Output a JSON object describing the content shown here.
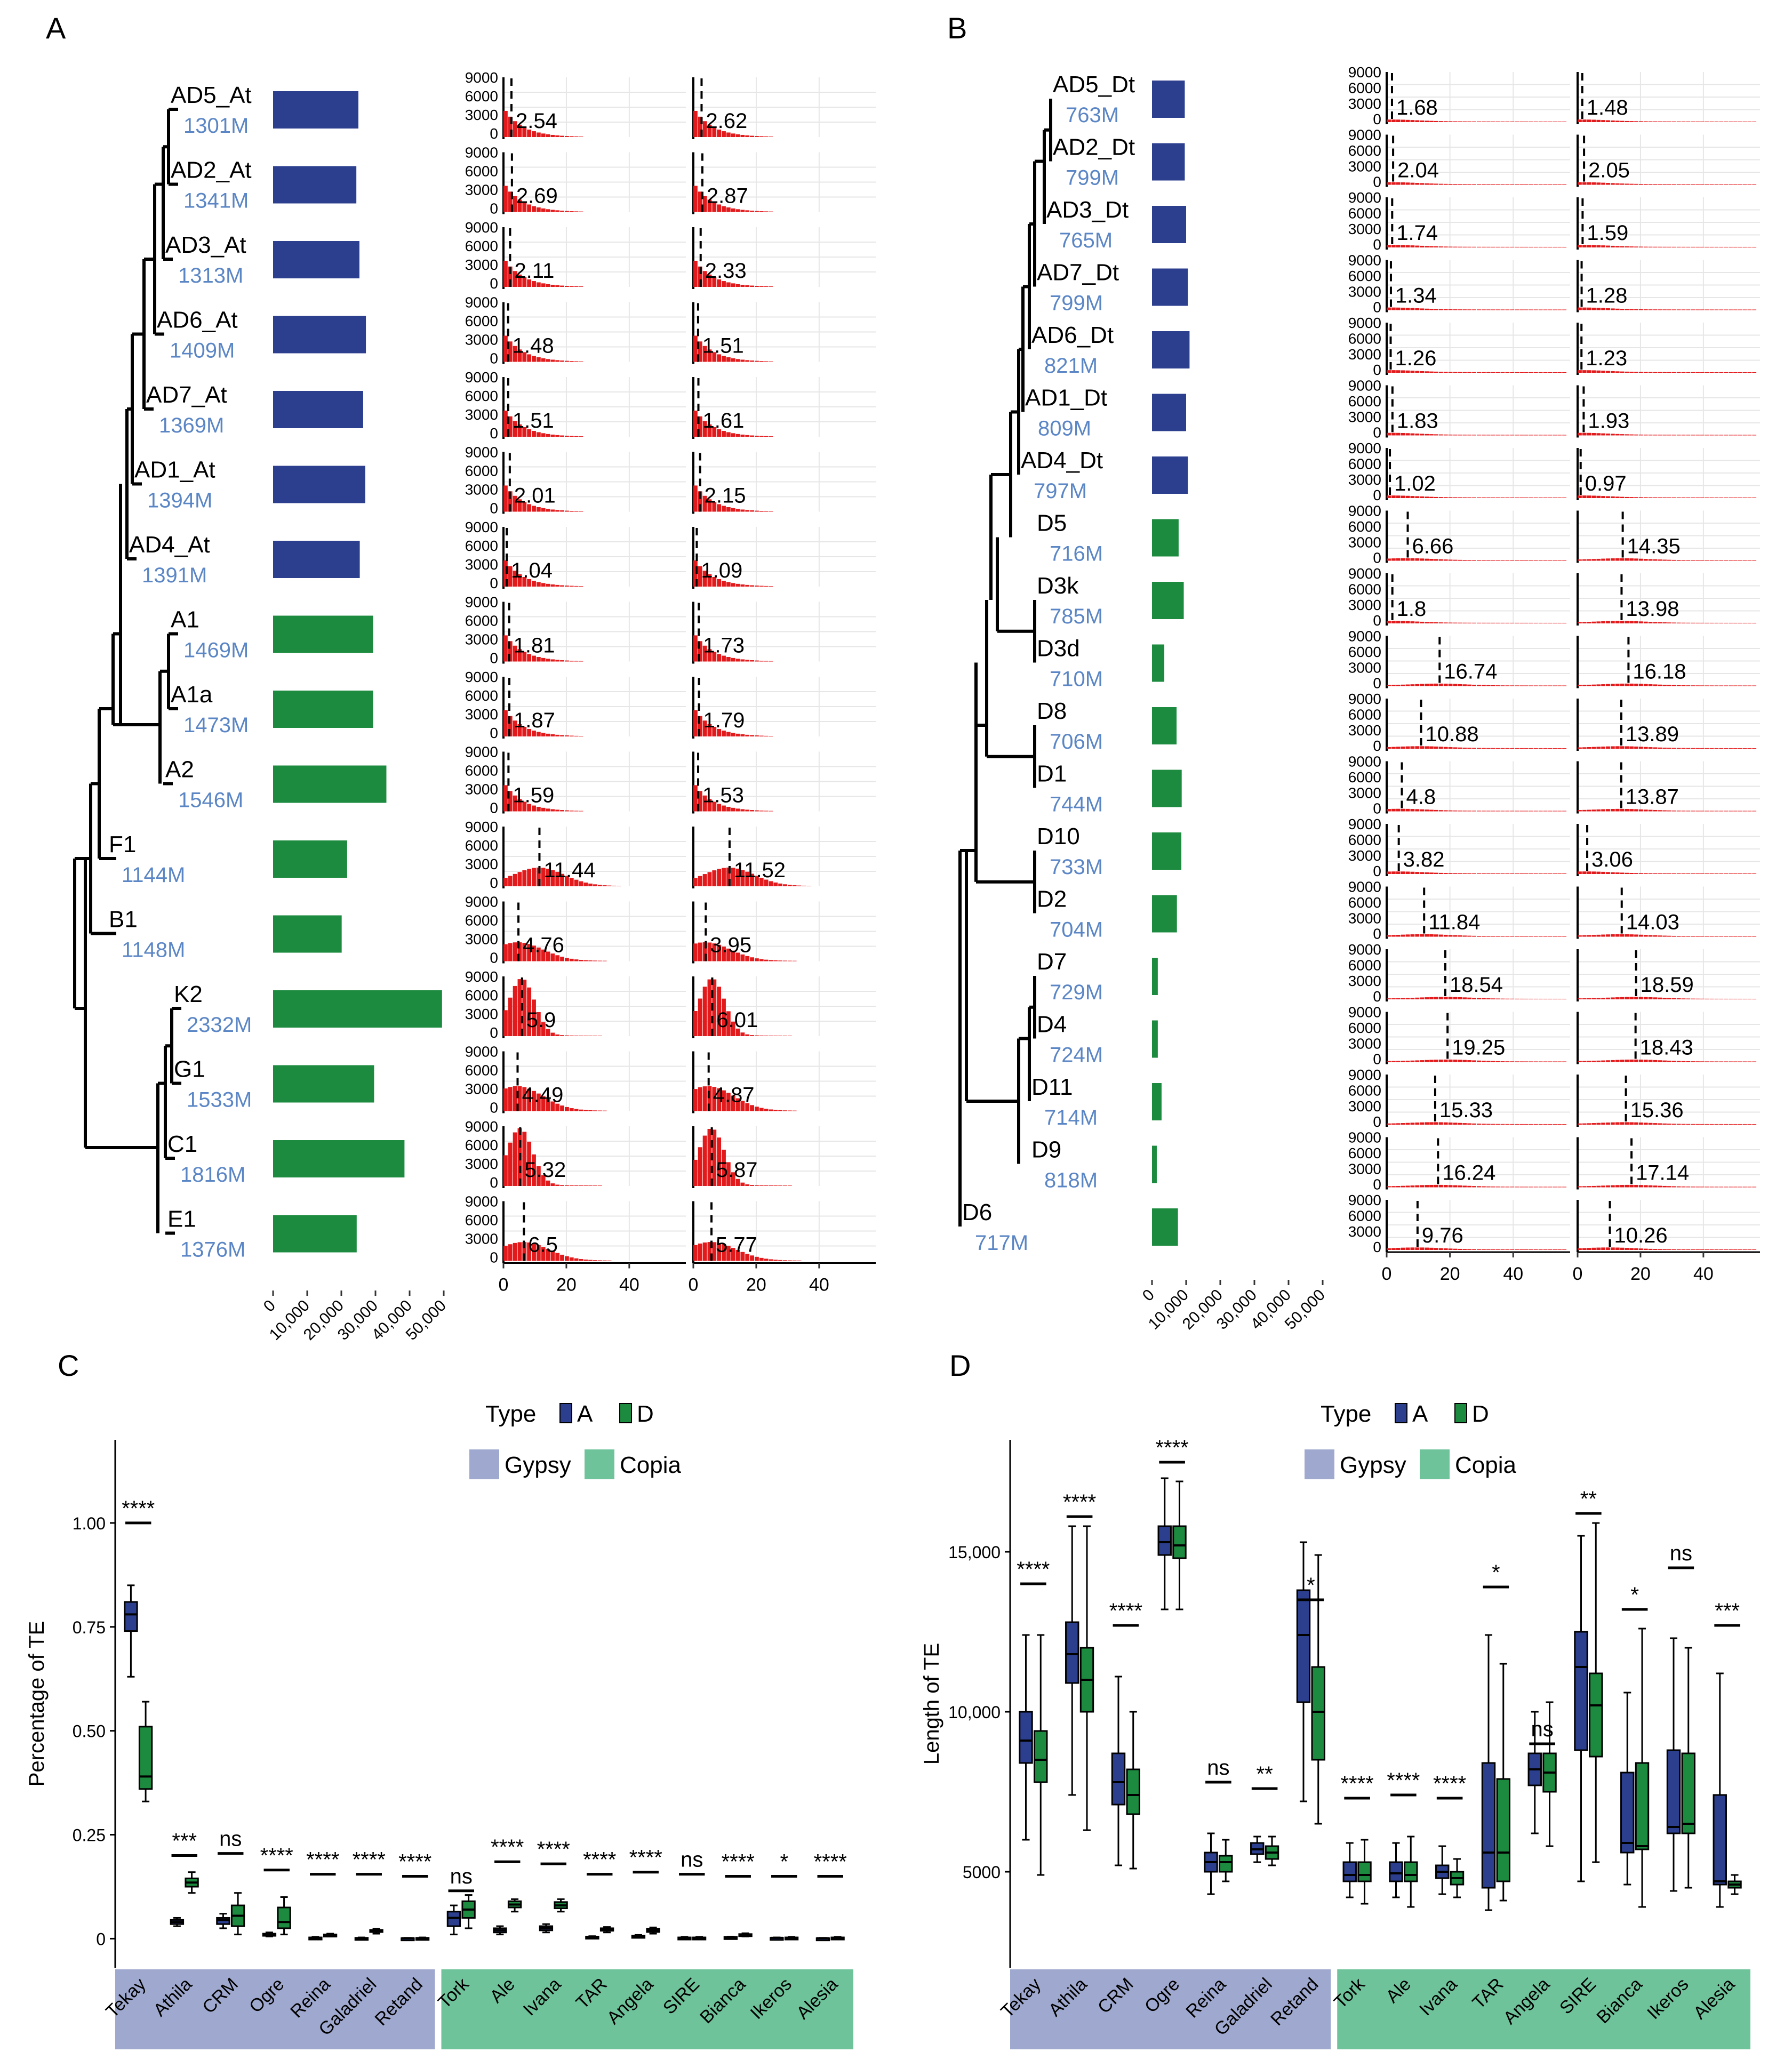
{
  "colors": {
    "navy": "#2c3f8f",
    "green": "#1d8b3f",
    "red": "#e31a1c",
    "name_blue": "#5b86c5",
    "gypsy_bg": "#9fa9cf",
    "copia_bg": "#6fc39b",
    "grid": "#e6e6e6"
  },
  "panels": {
    "A": "A",
    "B": "B",
    "C": "C",
    "D": "D"
  },
  "chart_data": [
    {
      "panel": "A",
      "type": "bar",
      "bar_axis": {
        "ticks": [
          "0",
          "10,000",
          "20,000",
          "30,000",
          "40,000",
          "50,000"
        ],
        "range": [
          0,
          50000
        ]
      },
      "hist_axis": {
        "yticks": [
          "9000",
          "6000",
          "3000",
          "0"
        ],
        "xticks": [
          "0",
          "20",
          "40"
        ],
        "xrange": [
          0,
          58
        ]
      },
      "taxa": [
        {
          "name": "AD5_At",
          "size": "1301M",
          "color": "navy",
          "bar": 25000,
          "peak1": 2.54,
          "peak2": 2.62,
          "kind": "young"
        },
        {
          "name": "AD2_At",
          "size": "1341M",
          "color": "navy",
          "bar": 24400,
          "peak1": 2.69,
          "peak2": 2.87,
          "kind": "young"
        },
        {
          "name": "AD3_At",
          "size": "1313M",
          "color": "navy",
          "bar": 25300,
          "peak1": 2.11,
          "peak2": 2.33,
          "kind": "young"
        },
        {
          "name": "AD6_At",
          "size": "1409M",
          "color": "navy",
          "bar": 27200,
          "peak1": 1.48,
          "peak2": 1.51,
          "kind": "young"
        },
        {
          "name": "AD7_At",
          "size": "1369M",
          "color": "navy",
          "bar": 26400,
          "peak1": 1.51,
          "peak2": 1.61,
          "kind": "young"
        },
        {
          "name": "AD1_At",
          "size": "1394M",
          "color": "navy",
          "bar": 27000,
          "peak1": 2.01,
          "peak2": 2.15,
          "kind": "young"
        },
        {
          "name": "AD4_At",
          "size": "1391M",
          "color": "navy",
          "bar": 25400,
          "peak1": 1.04,
          "peak2": 1.09,
          "kind": "young"
        },
        {
          "name": "A1",
          "size": "1469M",
          "color": "green",
          "bar": 29300,
          "peak1": 1.81,
          "peak2": 1.73,
          "kind": "young"
        },
        {
          "name": "A1a",
          "size": "1473M",
          "color": "green",
          "bar": 29300,
          "peak1": 1.87,
          "peak2": 1.79,
          "kind": "young"
        },
        {
          "name": "A2",
          "size": "1546M",
          "color": "green",
          "bar": 33200,
          "peak1": 1.59,
          "peak2": 1.53,
          "kind": "young"
        },
        {
          "name": "F1",
          "size": "1144M",
          "color": "green",
          "bar": 21700,
          "peak1": 11.44,
          "peak2": 11.52,
          "kind": "mid"
        },
        {
          "name": "B1",
          "size": "1148M",
          "color": "green",
          "bar": 20100,
          "peak1": 4.76,
          "peak2": 3.95,
          "kind": "mid"
        },
        {
          "name": "K2",
          "size": "2332M",
          "color": "green",
          "bar": 49500,
          "peak1": 5.9,
          "peak2": 6.01,
          "kind": "big"
        },
        {
          "name": "G1",
          "size": "1533M",
          "color": "green",
          "bar": 29600,
          "peak1": 4.49,
          "peak2": 4.87,
          "kind": "mid2"
        },
        {
          "name": "C1",
          "size": "1816M",
          "color": "green",
          "bar": 38500,
          "peak1": 5.32,
          "peak2": 5.87,
          "kind": "big"
        },
        {
          "name": "E1",
          "size": "1376M",
          "color": "green",
          "bar": 24500,
          "peak1": 6.5,
          "peak2": 5.77,
          "kind": "mid"
        }
      ]
    },
    {
      "panel": "B",
      "type": "bar",
      "bar_axis": {
        "ticks": [
          "0",
          "10,000",
          "20,000",
          "30,000",
          "40,000",
          "50,000"
        ],
        "range": [
          0,
          50000
        ]
      },
      "hist_axis": {
        "yticks": [
          "9000",
          "6000",
          "3000",
          "0"
        ],
        "xticks": [
          "0",
          "20",
          "40"
        ],
        "xrange": [
          0,
          58
        ]
      },
      "taxa": [
        {
          "name": "AD5_Dt",
          "size": "763M",
          "color": "navy",
          "bar": 9600,
          "peak1": 1.68,
          "peak2": 1.48
        },
        {
          "name": "AD2_Dt",
          "size": "799M",
          "color": "navy",
          "bar": 9600,
          "peak1": 2.04,
          "peak2": 2.05
        },
        {
          "name": "AD3_Dt",
          "size": "765M",
          "color": "navy",
          "bar": 10000,
          "peak1": 1.74,
          "peak2": 1.59
        },
        {
          "name": "AD7_Dt",
          "size": "799M",
          "color": "navy",
          "bar": 10500,
          "peak1": 1.34,
          "peak2": 1.28
        },
        {
          "name": "AD6_Dt",
          "size": "821M",
          "color": "navy",
          "bar": 11000,
          "peak1": 1.26,
          "peak2": 1.23
        },
        {
          "name": "AD1_Dt",
          "size": "809M",
          "color": "navy",
          "bar": 10000,
          "peak1": 1.83,
          "peak2": 1.93
        },
        {
          "name": "AD4_Dt",
          "size": "797M",
          "color": "navy",
          "bar": 10500,
          "peak1": 1.02,
          "peak2": 0.97
        },
        {
          "name": "D5",
          "size": "716M",
          "color": "green",
          "bar": 7800,
          "peak1": 6.66,
          "peak2": 14.35
        },
        {
          "name": "D3k",
          "size": "785M",
          "color": "green",
          "bar": 9300,
          "peak1": 1.8,
          "peak2": 13.98
        },
        {
          "name": "D3d",
          "size": "710M",
          "color": "green",
          "bar": 3600,
          "peak1": 16.74,
          "peak2": 16.18
        },
        {
          "name": "D8",
          "size": "706M",
          "color": "green",
          "bar": 7200,
          "peak1": 10.88,
          "peak2": 13.89
        },
        {
          "name": "D1",
          "size": "744M",
          "color": "green",
          "bar": 8700,
          "peak1": 4.8,
          "peak2": 13.87
        },
        {
          "name": "D10",
          "size": "733M",
          "color": "green",
          "bar": 8600,
          "peak1": 3.82,
          "peak2": 3.06
        },
        {
          "name": "D2",
          "size": "704M",
          "color": "green",
          "bar": 7300,
          "peak1": 11.84,
          "peak2": 14.03
        },
        {
          "name": "D7",
          "size": "729M",
          "color": "green",
          "bar": 1700,
          "peak1": 18.54,
          "peak2": 18.59
        },
        {
          "name": "D4",
          "size": "724M",
          "color": "green",
          "bar": 1700,
          "peak1": 19.25,
          "peak2": 18.43
        },
        {
          "name": "D11",
          "size": "714M",
          "color": "green",
          "bar": 2800,
          "peak1": 15.33,
          "peak2": 15.36
        },
        {
          "name": "D9",
          "size": "818M",
          "color": "green",
          "bar": 1400,
          "peak1": 16.24,
          "peak2": 17.14
        },
        {
          "name": "D6",
          "size": "717M",
          "color": "green",
          "bar": 7600,
          "peak1": 9.76,
          "peak2": 10.26
        }
      ]
    },
    {
      "panel": "C",
      "type": "box",
      "ylabel": "Percentage of TE",
      "ylim": [
        -0.07,
        1.2
      ],
      "yticks": [
        0,
        0.25,
        0.5,
        0.75,
        1.0
      ],
      "ytick_labels": [
        "0",
        "0.25",
        "0.50",
        "0.75",
        "1.00"
      ],
      "legend": {
        "title": "Type",
        "labels": [
          "A",
          "D"
        ],
        "gypsy": "Gypsy",
        "copia": "Copia"
      },
      "categories": [
        "Tekay",
        "Athila",
        "CRM",
        "Ogre",
        "Reina",
        "Galadriel",
        "Retand",
        "Tork",
        "Ale",
        "Ivana",
        "TAR",
        "Angela",
        "SIRE",
        "Bianca",
        "Ikeros",
        "Alesia"
      ],
      "gypsy_count": 7,
      "sig": [
        "****",
        "***",
        "ns",
        "****",
        "****",
        "****",
        "****",
        "ns",
        "****",
        "****",
        "****",
        "****",
        "ns",
        "****",
        "*",
        "****"
      ],
      "sig_y": [
        1.0,
        0.2,
        0.205,
        0.165,
        0.155,
        0.155,
        0.15,
        0.115,
        0.185,
        0.18,
        0.155,
        0.16,
        0.155,
        0.15,
        0.15,
        0.15
      ],
      "A": [
        [
          0.63,
          0.74,
          0.78,
          0.81,
          0.85
        ],
        [
          0.03,
          0.035,
          0.04,
          0.045,
          0.05
        ],
        [
          0.025,
          0.035,
          0.045,
          0.05,
          0.06
        ],
        [
          0.005,
          0.008,
          0.01,
          0.012,
          0.015
        ],
        [
          0,
          0.001,
          0.002,
          0.003,
          0.004
        ],
        [
          0,
          0.001,
          0.001,
          0.002,
          0.003
        ],
        [
          0,
          0,
          0.001,
          0.001,
          0.002
        ],
        [
          0.01,
          0.03,
          0.05,
          0.065,
          0.08
        ],
        [
          0.01,
          0.015,
          0.02,
          0.025,
          0.03
        ],
        [
          0.015,
          0.02,
          0.025,
          0.03,
          0.035
        ],
        [
          0.002,
          0.003,
          0.004,
          0.005,
          0.006
        ],
        [
          0.003,
          0.004,
          0.005,
          0.007,
          0.009
        ],
        [
          0,
          0.001,
          0.002,
          0.003,
          0.004
        ],
        [
          0.001,
          0.002,
          0.003,
          0.004,
          0.005
        ],
        [
          0,
          0.001,
          0.002,
          0.002,
          0.003
        ],
        [
          0,
          0,
          0.001,
          0.001,
          0.002
        ]
      ],
      "D": [
        [
          0.33,
          0.36,
          0.39,
          0.51,
          0.57
        ],
        [
          0.11,
          0.125,
          0.135,
          0.145,
          0.16
        ],
        [
          0.01,
          0.03,
          0.055,
          0.08,
          0.11
        ],
        [
          0.01,
          0.025,
          0.04,
          0.075,
          0.1
        ],
        [
          0.005,
          0.007,
          0.009,
          0.01,
          0.012
        ],
        [
          0.012,
          0.016,
          0.018,
          0.021,
          0.024
        ],
        [
          0,
          0.001,
          0.001,
          0.002,
          0.003
        ],
        [
          0.025,
          0.05,
          0.07,
          0.09,
          0.105
        ],
        [
          0.065,
          0.075,
          0.082,
          0.09,
          0.095
        ],
        [
          0.065,
          0.073,
          0.08,
          0.088,
          0.095
        ],
        [
          0.015,
          0.019,
          0.022,
          0.025,
          0.028
        ],
        [
          0.012,
          0.016,
          0.02,
          0.024,
          0.027
        ],
        [
          0,
          0.001,
          0.002,
          0.003,
          0.004
        ],
        [
          0.005,
          0.007,
          0.009,
          0.011,
          0.013
        ],
        [
          0,
          0.001,
          0.002,
          0.003,
          0.004
        ],
        [
          0,
          0.001,
          0.002,
          0.003,
          0.004
        ]
      ]
    },
    {
      "panel": "D",
      "type": "box",
      "ylabel": "Length of TE",
      "ylim": [
        2000,
        18500
      ],
      "yticks": [
        5000,
        10000,
        15000
      ],
      "ytick_labels": [
        "5000",
        "10,000",
        "15,000"
      ],
      "legend": {
        "title": "Type",
        "labels": [
          "A",
          "D"
        ],
        "gypsy": "Gypsy",
        "copia": "Copia"
      },
      "categories": [
        "Tekay",
        "Athila",
        "CRM",
        "Ogre",
        "Reina",
        "Galadriel",
        "Retand",
        "Tork",
        "Ale",
        "Ivana",
        "TAR",
        "Angela",
        "SIRE",
        "Bianca",
        "Ikeros",
        "Alesia"
      ],
      "gypsy_count": 7,
      "sig": [
        "****",
        "****",
        "****",
        "****",
        "ns",
        "**",
        "*",
        "****",
        "****",
        "****",
        "*",
        "ns",
        "**",
        "*",
        "ns",
        "***"
      ],
      "sig_y": [
        14000,
        16100,
        12700,
        17800,
        7800,
        7600,
        13500,
        7300,
        7400,
        7300,
        13900,
        9000,
        16200,
        13200,
        14500,
        12700
      ],
      "A": [
        [
          6000,
          8400,
          9100,
          10000,
          12400
        ],
        [
          7400,
          10900,
          11800,
          12800,
          15800
        ],
        [
          5200,
          7100,
          7800,
          8700,
          11100
        ],
        [
          13200,
          14900,
          15300,
          15800,
          17300
        ],
        [
          4300,
          5000,
          5300,
          5600,
          6200
        ],
        [
          5300,
          5550,
          5700,
          5900,
          6100
        ],
        [
          7200,
          10300,
          12400,
          13800,
          15300
        ],
        [
          4200,
          4700,
          4900,
          5300,
          5900
        ],
        [
          4200,
          4700,
          4950,
          5300,
          5900
        ],
        [
          4300,
          4800,
          5000,
          5200,
          5800
        ],
        [
          3800,
          4500,
          5600,
          8400,
          12400
        ],
        [
          6200,
          7700,
          8200,
          8700,
          10000
        ],
        [
          4700,
          8800,
          11400,
          12500,
          15500
        ],
        [
          4600,
          5600,
          5900,
          8100,
          10600
        ],
        [
          4400,
          6200,
          6400,
          8800,
          12300
        ],
        [
          3900,
          4600,
          4700,
          7400,
          11200
        ]
      ],
      "D": [
        [
          4900,
          7800,
          8500,
          9400,
          12400
        ],
        [
          6300,
          10000,
          11000,
          12000,
          15800
        ],
        [
          5100,
          6800,
          7400,
          8200,
          10000
        ],
        [
          13200,
          14800,
          15200,
          15800,
          17200
        ],
        [
          4700,
          5000,
          5300,
          5500,
          6000
        ],
        [
          5200,
          5400,
          5600,
          5800,
          6100
        ],
        [
          6500,
          8500,
          10000,
          11400,
          14900
        ],
        [
          4000,
          4700,
          4900,
          5300,
          6000
        ],
        [
          3900,
          4700,
          4900,
          5300,
          6100
        ],
        [
          4200,
          4600,
          4800,
          5000,
          5400
        ],
        [
          4100,
          4700,
          5600,
          7900,
          11500
        ],
        [
          5800,
          7500,
          8100,
          8700,
          10300
        ],
        [
          5300,
          8600,
          10200,
          11200,
          15900
        ],
        [
          3900,
          5700,
          5800,
          8400,
          12600
        ],
        [
          4500,
          6200,
          6500,
          8700,
          12000
        ],
        [
          4300,
          4500,
          4600,
          4700,
          4900
        ]
      ]
    }
  ]
}
